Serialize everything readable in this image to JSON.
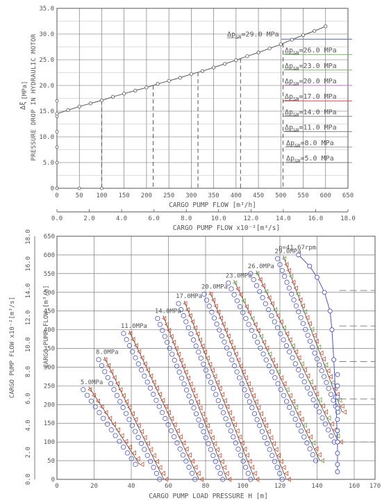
{
  "chart_data": [
    {
      "type": "line",
      "panel": "top",
      "xlabel": "CARGO PUMP FLOW [m³/h]",
      "ylabel_symbol": "Δξ",
      "ylabel_unit": "[MPa]",
      "ylabel": "PRESSURE DROP IN HYDRAULIC MOTOR",
      "xlim": [
        0,
        650
      ],
      "ylim": [
        0,
        35
      ],
      "x_ticks": [
        "0",
        "50",
        "100",
        "150",
        "200",
        "250",
        "300",
        "350",
        "400",
        "450",
        "500",
        "550",
        "600",
        "650"
      ],
      "y_ticks": [
        "0",
        "5.0",
        "10.0",
        "15.0",
        "20.0",
        "25.0",
        "30.0",
        "35.0"
      ],
      "secondary_xlabel": "CARGO PUMP FLOW x10⁻²[m³/s]",
      "secondary_x_ticks": [
        "0.0",
        "2.0",
        "4.0",
        "6.0",
        "8.0",
        "10.0",
        "12.0",
        "14.0",
        "16.0",
        "18.0"
      ],
      "series": [
        {
          "x": [
            0,
            25,
            50,
            75,
            100,
            125,
            150,
            175,
            200,
            225,
            250,
            275,
            300,
            325,
            350,
            375,
            400,
            425,
            450,
            475,
            500,
            525,
            550,
            575,
            600
          ],
          "y": [
            14.5,
            15.2,
            15.9,
            16.5,
            17.1,
            17.8,
            18.4,
            19.0,
            19.6,
            20.3,
            20.9,
            21.5,
            22.2,
            22.8,
            23.5,
            24.2,
            24.9,
            25.7,
            26.4,
            27.2,
            28.0,
            28.9,
            29.8,
            30.6,
            31.5
          ]
        }
      ],
      "left_axis_markers_y": [
        0,
        5.0,
        8.0,
        11.0,
        14.0,
        17.0
      ],
      "bottom_axis_markers_x": [
        0,
        50,
        100
      ],
      "vertical_dashed_x": [
        100,
        215,
        315,
        410,
        505
      ],
      "pressure_lines": [
        {
          "label_sym": "Δp",
          "label_sub": "SN",
          "label_val": "=29.0 MPa",
          "y": 29.0
        },
        {
          "label_sym": "Δp",
          "label_sub": "SN",
          "label_val": "=26.0 MPa",
          "y": 26.0
        },
        {
          "label_sym": "Δp",
          "label_sub": "SN",
          "label_val": "=23.0 MPa",
          "y": 23.0
        },
        {
          "label_sym": "Δp",
          "label_sub": "SN",
          "label_val": "=20.0 MPa",
          "y": 20.0
        },
        {
          "label_sym": "Δp",
          "label_sub": "SN",
          "label_val": "=17.0 MPa",
          "y": 17.0
        },
        {
          "label_sym": "Δp",
          "label_sub": "SN",
          "label_val": "=14.0 MPa",
          "y": 14.0
        },
        {
          "label_sym": "Δp",
          "label_sub": "SN",
          "label_val": "=11.0 MPa",
          "y": 11.0
        },
        {
          "label_sym": "Δp",
          "label_sub": "SN",
          "label_val": "=8.0 MPa",
          "y": 8.0
        },
        {
          "label_sym": "Δp",
          "label_sub": "SN",
          "label_val": "=5.0 MPa",
          "y": 5.0
        }
      ],
      "colors": {
        "curve": "#555555",
        "grid": "#666666",
        "line29": "#4a6fb0",
        "line26": "#7db860",
        "line23": "#7db860",
        "line20": "#c070c8",
        "line17": "#d04848",
        "line14": "#888888"
      }
    },
    {
      "type": "scatter",
      "panel": "bottom",
      "xlabel": "CARGO PUMP LOAD PRESSURE H [m]",
      "ylabel_left": "CARGO PUMP FLOW x10⁻²[m³/s]",
      "ylabel_right": "CARGO PUMP FLOW [m³/h]",
      "xlim": [
        0,
        170
      ],
      "ylim": [
        0,
        650
      ],
      "x_ticks": [
        "0",
        "20",
        "40",
        "60",
        "80",
        "100",
        "120",
        "140",
        "160",
        "170"
      ],
      "y_ticks": [
        "0",
        "50",
        "100",
        "150",
        "200",
        "250",
        "300",
        "350",
        "400",
        "450",
        "500",
        "550",
        "600",
        "650"
      ],
      "left_ticks": [
        "0.0",
        "2.0",
        "4.0",
        "6.0",
        "8.0",
        "10.0",
        "12.0",
        "14.0",
        "16.0",
        "18.0"
      ],
      "speed_label": "n=41.67rpm",
      "curves": [
        {
          "name": "5.0MPa",
          "x_top": 14.9,
          "x_bottom": 43,
          "y_top": 240,
          "y_bottom": 40
        },
        {
          "name": "8.0MPa",
          "x_top": 23.2,
          "x_bottom": 56,
          "y_top": 320,
          "y_bottom": 0
        },
        {
          "name": "11.0MPa",
          "x_top": 36.6,
          "x_bottom": 75,
          "y_top": 390,
          "y_bottom": 0
        },
        {
          "name": "14.0MPa",
          "x_top": 54.9,
          "x_bottom": 90,
          "y_top": 430,
          "y_bottom": 0
        },
        {
          "name": "17.0MPa",
          "x_top": 66.2,
          "x_bottom": 105,
          "y_top": 470,
          "y_bottom": 0
        },
        {
          "name": "20.0MPa",
          "x_top": 80.0,
          "x_bottom": 122,
          "y_top": 495,
          "y_bottom": 0
        },
        {
          "name": "23.0MPa",
          "x_top": 93.0,
          "x_bottom": 140,
          "y_top": 525,
          "y_bottom": 50
        },
        {
          "name": "26.0MPa",
          "x_top": 105.0,
          "x_bottom": 150,
          "y_top": 550,
          "y_bottom": 100
        },
        {
          "name": "29.0MPa",
          "x_top": 119.5,
          "x_bottom": 152,
          "y_top": 590,
          "y_bottom": 180
        }
      ],
      "n_curve": {
        "x": [
          130,
          136,
          140,
          144,
          147,
          148,
          149,
          150,
          151,
          151
        ],
        "y": [
          600,
          570,
          540,
          500,
          450,
          400,
          320,
          220,
          100,
          20
        ]
      },
      "right_dashed_y": [
        100,
        215,
        315,
        410,
        505
      ],
      "colors": {
        "circles": "#4a55c0",
        "triangles": "#d05030",
        "triangles_green": "#7a9a40",
        "lines": "#555555",
        "grid": "#666666"
      }
    }
  ]
}
